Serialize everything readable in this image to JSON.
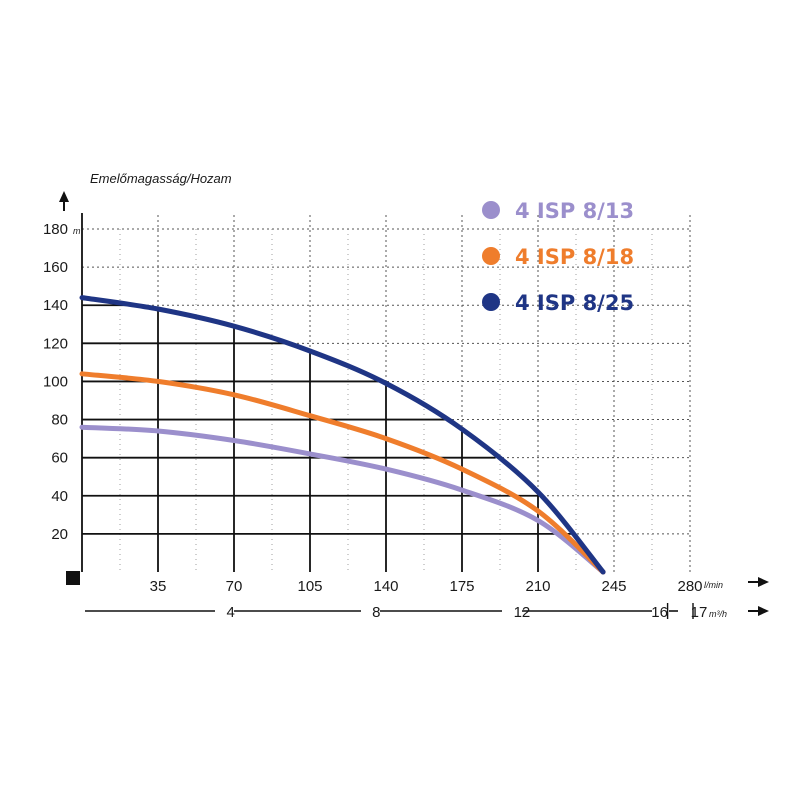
{
  "chart_data": {
    "type": "line",
    "title": "Emelőmagasság/Hozam",
    "y_unit": "m",
    "x_unit": "l/min",
    "x2_unit": "m³/h",
    "ylim": [
      0,
      180
    ],
    "xlim": [
      0,
      280
    ],
    "x2lim": [
      0,
      17
    ],
    "y_ticks": [
      20,
      40,
      60,
      80,
      100,
      120,
      140,
      160,
      180
    ],
    "x_ticks": [
      35,
      70,
      105,
      140,
      175,
      210,
      245,
      280
    ],
    "x2_ticks": [
      4,
      8,
      12,
      16,
      17
    ],
    "grid": true,
    "legend_position": "top-right",
    "series": [
      {
        "name": "4 ISP 8/13",
        "color": "#9b8fcc",
        "x": [
          0,
          35,
          70,
          105,
          140,
          175,
          210,
          240
        ],
        "y": [
          76,
          74,
          69,
          62,
          54,
          43,
          27,
          0
        ]
      },
      {
        "name": "4 ISP 8/18",
        "color": "#ef7d2c",
        "x": [
          0,
          35,
          70,
          105,
          140,
          175,
          210,
          240
        ],
        "y": [
          104,
          100,
          93,
          82,
          70,
          54,
          32,
          0
        ]
      },
      {
        "name": "4 ISP 8/25",
        "color": "#1f3585",
        "x": [
          0,
          35,
          70,
          105,
          140,
          175,
          210,
          240
        ],
        "y": [
          144,
          138,
          129,
          116,
          99,
          75,
          42,
          0
        ]
      }
    ]
  }
}
